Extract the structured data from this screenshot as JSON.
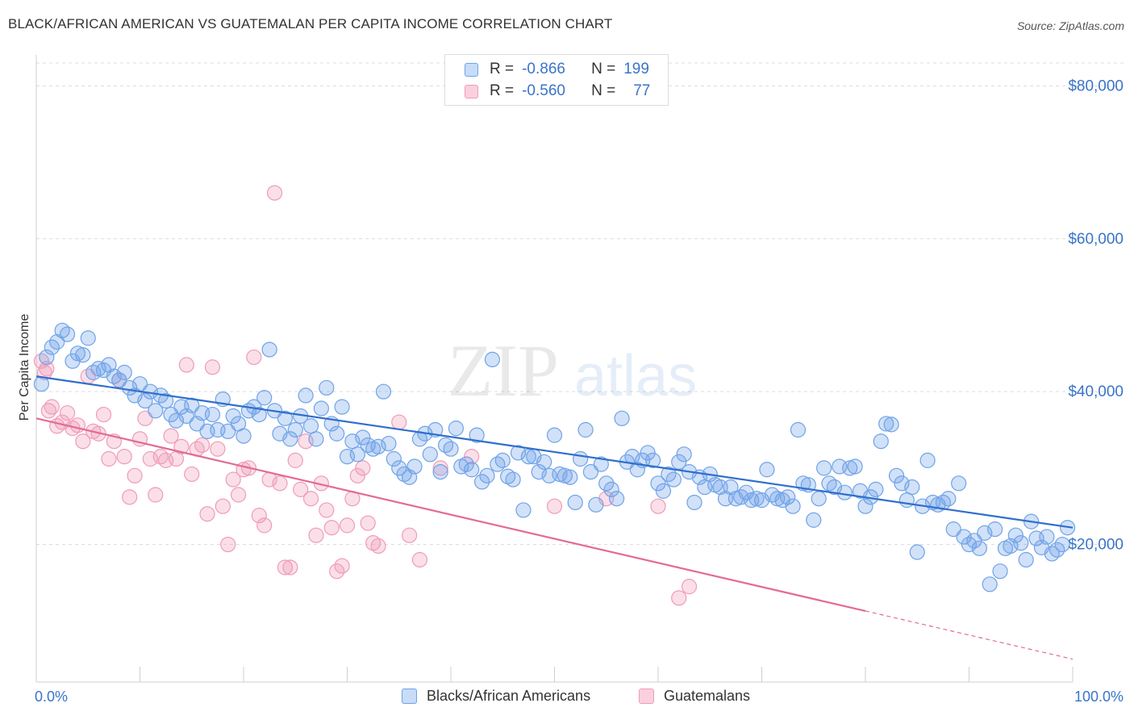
{
  "title": "BLACK/AFRICAN AMERICAN VS GUATEMALAN PER CAPITA INCOME CORRELATION CHART",
  "source": "Source: ZipAtlas.com",
  "legend": {
    "r_label": "R =",
    "n_label": "N =",
    "series": [
      {
        "r": "-0.866",
        "n": "199",
        "color": "#6fa3e8"
      },
      {
        "r": "-0.560",
        "n": "77",
        "color": "#f19bb6"
      }
    ]
  },
  "bottom_legend": [
    "Blacks/African Americans",
    "Guatemalans"
  ],
  "watermark": {
    "zip": "ZIP",
    "atlas": "atlas"
  },
  "chart_data": {
    "type": "scatter",
    "title": "BLACK/AFRICAN AMERICAN VS GUATEMALAN PER CAPITA INCOME CORRELATION CHART",
    "xlabel": "",
    "ylabel": "Per Capita Income",
    "xlim": [
      0,
      100
    ],
    "ylim": [
      2000,
      83000
    ],
    "x_tick_labels": [
      "0.0%",
      "100.0%"
    ],
    "y_ticks": [
      20000,
      40000,
      60000,
      80000
    ],
    "y_tick_labels": [
      "$20,000",
      "$40,000",
      "$60,000",
      "$80,000"
    ],
    "grid": true,
    "legend_position": "top-center",
    "series": [
      {
        "name": "Blacks/African Americans",
        "color": "#6fa3e8",
        "line_color": "#2f6fcc",
        "trend": {
          "x": [
            0,
            100
          ],
          "y": [
            42000,
            22200
          ]
        },
        "points": [
          [
            0.5,
            41000
          ],
          [
            1,
            44500
          ],
          [
            1.5,
            45800
          ],
          [
            2,
            46500
          ],
          [
            2.5,
            48000
          ],
          [
            3,
            47500
          ],
          [
            3.5,
            44000
          ],
          [
            4,
            45000
          ],
          [
            4.5,
            44800
          ],
          [
            5,
            47000
          ],
          [
            5.5,
            42500
          ],
          [
            6,
            43000
          ],
          [
            6.5,
            42800
          ],
          [
            7,
            43500
          ],
          [
            7.5,
            42000
          ],
          [
            8,
            41500
          ],
          [
            8.5,
            42500
          ],
          [
            9,
            40500
          ],
          [
            9.5,
            39500
          ],
          [
            10,
            41000
          ],
          [
            10.5,
            38800
          ],
          [
            11,
            40000
          ],
          [
            11.5,
            37500
          ],
          [
            12,
            39500
          ],
          [
            12.5,
            38800
          ],
          [
            13,
            37000
          ],
          [
            13.5,
            36200
          ],
          [
            14,
            38000
          ],
          [
            14.5,
            36800
          ],
          [
            15,
            38200
          ],
          [
            15.5,
            35800
          ],
          [
            16,
            37200
          ],
          [
            16.5,
            34800
          ],
          [
            17,
            37000
          ],
          [
            17.5,
            35000
          ],
          [
            18,
            39000
          ],
          [
            18.5,
            34800
          ],
          [
            19,
            36800
          ],
          [
            19.5,
            35800
          ],
          [
            20,
            34200
          ],
          [
            20.5,
            37500
          ],
          [
            21,
            38000
          ],
          [
            21.5,
            37000
          ],
          [
            22,
            39200
          ],
          [
            22.5,
            45500
          ],
          [
            23,
            37500
          ],
          [
            23.5,
            34500
          ],
          [
            24,
            36500
          ],
          [
            24.5,
            33800
          ],
          [
            25,
            35000
          ],
          [
            25.5,
            36800
          ],
          [
            26,
            39500
          ],
          [
            26.5,
            35500
          ],
          [
            27,
            33800
          ],
          [
            27.5,
            37800
          ],
          [
            28,
            40500
          ],
          [
            28.5,
            35800
          ],
          [
            29,
            34500
          ],
          [
            29.5,
            38000
          ],
          [
            30,
            31500
          ],
          [
            30.5,
            33500
          ],
          [
            31,
            31800
          ],
          [
            31.5,
            34000
          ],
          [
            32,
            33000
          ],
          [
            32.5,
            32500
          ],
          [
            33,
            32800
          ],
          [
            33.5,
            40000
          ],
          [
            34,
            33200
          ],
          [
            34.5,
            31200
          ],
          [
            35,
            30000
          ],
          [
            35.5,
            29200
          ],
          [
            36,
            28800
          ],
          [
            36.5,
            30200
          ],
          [
            37,
            33800
          ],
          [
            37.5,
            34500
          ],
          [
            38,
            31800
          ],
          [
            38.5,
            35000
          ],
          [
            39,
            29500
          ],
          [
            39.5,
            33000
          ],
          [
            40,
            32500
          ],
          [
            40.5,
            35200
          ],
          [
            41,
            30200
          ],
          [
            41.5,
            30500
          ],
          [
            42,
            29800
          ],
          [
            42.5,
            34300
          ],
          [
            43,
            28200
          ],
          [
            43.5,
            29000
          ],
          [
            44,
            44200
          ],
          [
            44.5,
            30500
          ],
          [
            45,
            31000
          ],
          [
            45.5,
            28900
          ],
          [
            46,
            28500
          ],
          [
            46.5,
            32000
          ],
          [
            47,
            24500
          ],
          [
            47.5,
            31500
          ],
          [
            48,
            31500
          ],
          [
            48.5,
            29500
          ],
          [
            49,
            30800
          ],
          [
            49.5,
            29000
          ],
          [
            50,
            34300
          ],
          [
            50.5,
            29200
          ],
          [
            51,
            29000
          ],
          [
            51.5,
            28800
          ],
          [
            52,
            25500
          ],
          [
            52.5,
            31200
          ],
          [
            53,
            35000
          ],
          [
            53.5,
            29500
          ],
          [
            54,
            25200
          ],
          [
            54.5,
            30500
          ],
          [
            55,
            28000
          ],
          [
            55.5,
            27200
          ],
          [
            56,
            26000
          ],
          [
            56.5,
            36500
          ],
          [
            57,
            30800
          ],
          [
            57.5,
            31500
          ],
          [
            58,
            29800
          ],
          [
            58.5,
            31000
          ],
          [
            59,
            32000
          ],
          [
            59.5,
            31000
          ],
          [
            60,
            28000
          ],
          [
            60.5,
            27000
          ],
          [
            61,
            29200
          ],
          [
            61.5,
            28500
          ],
          [
            62,
            30800
          ],
          [
            62.5,
            31800
          ],
          [
            63,
            29500
          ],
          [
            63.5,
            25500
          ],
          [
            64,
            28800
          ],
          [
            64.5,
            27500
          ],
          [
            65,
            29200
          ],
          [
            65.5,
            27800
          ],
          [
            66,
            27500
          ],
          [
            66.5,
            26000
          ],
          [
            67,
            27500
          ],
          [
            67.5,
            26000
          ],
          [
            68,
            26200
          ],
          [
            68.5,
            26800
          ],
          [
            69,
            25800
          ],
          [
            69.5,
            26000
          ],
          [
            70,
            25800
          ],
          [
            70.5,
            29800
          ],
          [
            71,
            26500
          ],
          [
            71.5,
            26000
          ],
          [
            72,
            25800
          ],
          [
            72.5,
            26200
          ],
          [
            73,
            25000
          ],
          [
            73.5,
            35000
          ],
          [
            74,
            28000
          ],
          [
            74.5,
            27800
          ],
          [
            75,
            23200
          ],
          [
            75.5,
            26000
          ],
          [
            76,
            30000
          ],
          [
            76.5,
            28000
          ],
          [
            77,
            27500
          ],
          [
            77.5,
            30200
          ],
          [
            78,
            26800
          ],
          [
            78.5,
            30000
          ],
          [
            79,
            30200
          ],
          [
            79.5,
            27000
          ],
          [
            80,
            25000
          ],
          [
            80.5,
            26200
          ],
          [
            81,
            27200
          ],
          [
            81.5,
            33500
          ],
          [
            82,
            35800
          ],
          [
            82.5,
            35700
          ],
          [
            83,
            29000
          ],
          [
            83.5,
            28000
          ],
          [
            84,
            25800
          ],
          [
            84.5,
            27500
          ],
          [
            85,
            19000
          ],
          [
            85.5,
            25000
          ],
          [
            86,
            31000
          ],
          [
            86.5,
            25500
          ],
          [
            87,
            25200
          ],
          [
            87.5,
            25500
          ],
          [
            88,
            26000
          ],
          [
            88.5,
            22000
          ],
          [
            89,
            28000
          ],
          [
            89.5,
            21000
          ],
          [
            90,
            20000
          ],
          [
            90.5,
            20500
          ],
          [
            91,
            19500
          ],
          [
            91.5,
            21500
          ],
          [
            92,
            14800
          ],
          [
            92.5,
            22000
          ],
          [
            93,
            16500
          ],
          [
            93.5,
            19500
          ],
          [
            94,
            19800
          ],
          [
            94.5,
            21200
          ],
          [
            95,
            20200
          ],
          [
            95.5,
            18000
          ],
          [
            96,
            23000
          ],
          [
            96.5,
            20800
          ],
          [
            97,
            19600
          ],
          [
            97.5,
            21000
          ],
          [
            98,
            18800
          ],
          [
            98.5,
            19300
          ],
          [
            99,
            20000
          ],
          [
            99.5,
            22200
          ]
        ]
      },
      {
        "name": "Guatemalans",
        "color": "#f19bb6",
        "line_color": "#e36b93",
        "trend": {
          "x": [
            0,
            80
          ],
          "y": [
            36500,
            11300
          ]
        },
        "trend_dashed": {
          "x": [
            80,
            100
          ],
          "y": [
            11300,
            5000
          ]
        },
        "points": [
          [
            0.5,
            44000
          ],
          [
            0.8,
            42500
          ],
          [
            1,
            43000
          ],
          [
            1.2,
            37500
          ],
          [
            1.5,
            38000
          ],
          [
            2,
            35500
          ],
          [
            2.5,
            36000
          ],
          [
            3,
            37200
          ],
          [
            3.5,
            35200
          ],
          [
            4,
            35600
          ],
          [
            4.5,
            33500
          ],
          [
            5,
            42000
          ],
          [
            5.5,
            34800
          ],
          [
            6,
            34500
          ],
          [
            6.5,
            37000
          ],
          [
            7,
            31200
          ],
          [
            7.5,
            33500
          ],
          [
            8,
            41500
          ],
          [
            8.5,
            31500
          ],
          [
            9,
            26200
          ],
          [
            9.5,
            29000
          ],
          [
            10,
            33800
          ],
          [
            10.5,
            36500
          ],
          [
            11,
            31200
          ],
          [
            11.5,
            26500
          ],
          [
            12,
            31500
          ],
          [
            12.5,
            31000
          ],
          [
            13,
            34200
          ],
          [
            13.5,
            31200
          ],
          [
            14,
            32800
          ],
          [
            14.5,
            43500
          ],
          [
            15,
            29200
          ],
          [
            15.5,
            32500
          ],
          [
            16,
            33000
          ],
          [
            16.5,
            24000
          ],
          [
            17,
            43200
          ],
          [
            17.5,
            32500
          ],
          [
            18,
            25000
          ],
          [
            18.5,
            20000
          ],
          [
            19,
            28500
          ],
          [
            19.5,
            26500
          ],
          [
            20,
            29800
          ],
          [
            20.5,
            30000
          ],
          [
            21,
            44500
          ],
          [
            21.5,
            23800
          ],
          [
            22,
            22500
          ],
          [
            22.5,
            28500
          ],
          [
            23,
            66000
          ],
          [
            23.5,
            28000
          ],
          [
            24,
            17000
          ],
          [
            24.5,
            17000
          ],
          [
            25,
            31000
          ],
          [
            25.5,
            27200
          ],
          [
            26,
            33500
          ],
          [
            26.5,
            26000
          ],
          [
            27,
            21200
          ],
          [
            27.5,
            28000
          ],
          [
            28,
            24500
          ],
          [
            28.5,
            22200
          ],
          [
            29,
            16500
          ],
          [
            29.5,
            17200
          ],
          [
            30,
            22500
          ],
          [
            30.5,
            26000
          ],
          [
            31,
            29000
          ],
          [
            31.5,
            30000
          ],
          [
            32,
            22800
          ],
          [
            32.5,
            20200
          ],
          [
            33,
            19800
          ],
          [
            35,
            36000
          ],
          [
            36,
            21200
          ],
          [
            37,
            18000
          ],
          [
            39,
            30000
          ],
          [
            42,
            31500
          ],
          [
            50,
            25000
          ],
          [
            55,
            26000
          ],
          [
            60,
            25000
          ],
          [
            62,
            13000
          ],
          [
            63,
            14500
          ]
        ]
      }
    ]
  }
}
